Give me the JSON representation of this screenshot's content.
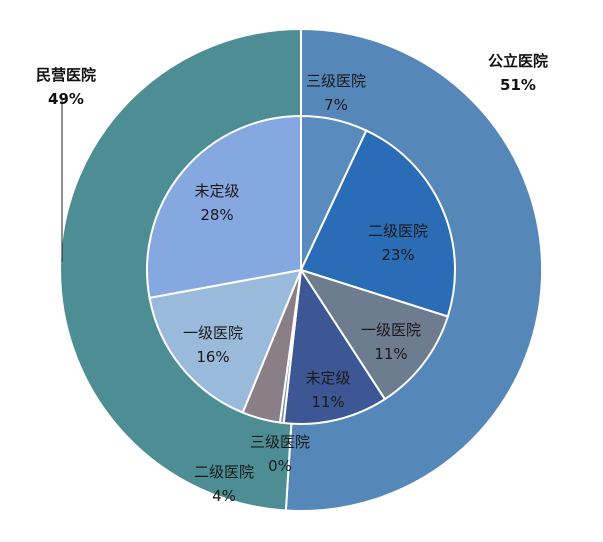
{
  "chart_data": {
    "type": "pie",
    "subtype": "doughnut-with-inner-pie",
    "outer": [
      {
        "name": "公立医院",
        "pct_label": "51%",
        "value": 51,
        "color": "#5587B8"
      },
      {
        "name": "民营医院",
        "pct_label": "49%",
        "value": 49,
        "color": "#4D8E94"
      }
    ],
    "inner": [
      {
        "name": "三级医院",
        "pct_label": "7%",
        "value": 7,
        "color": "#5A8BBE"
      },
      {
        "name": "二级医院",
        "pct_label": "23%",
        "value": 23,
        "color": "#2A6CB6"
      },
      {
        "name": "一级医院",
        "pct_label": "11%",
        "value": 11,
        "color": "#6D7C8F"
      },
      {
        "name": "未定级",
        "pct_label": "11%",
        "value": 11,
        "color": "#3D5694"
      },
      {
        "name": "三级医院",
        "pct_label": "0%",
        "value": 0.4,
        "color": "#6F8FB0"
      },
      {
        "name": "二级医院",
        "pct_label": "4%",
        "value": 4,
        "color": "#8A7F86"
      },
      {
        "name": "一级医院",
        "pct_label": "16%",
        "value": 16,
        "color": "#9ABADC"
      },
      {
        "name": "未定级",
        "pct_label": "28%",
        "value": 28,
        "color": "#86A8E0"
      }
    ]
  }
}
